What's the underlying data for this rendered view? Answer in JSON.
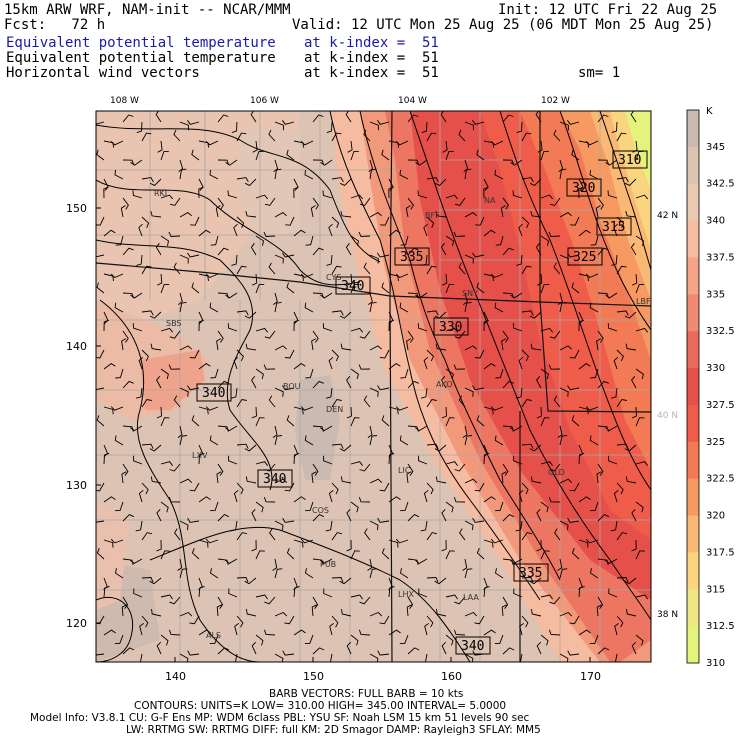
{
  "header": {
    "model_line": "15km ARW WRF, NAM-init -- NCAR/MMM",
    "init_line": "Init: 12 UTC Fri 22 Aug 25",
    "fcst_line": "Fcst:   72 h",
    "valid_line": "Valid: 12 UTC Mon 25 Aug 25 (06 MDT Mon 25 Aug 25)",
    "field1_name": "Equivalent potential temperature",
    "field1_level": "at k-index =  51",
    "field2_name": "Equivalent potential temperature",
    "field2_level": "at k-index =  51",
    "field3_name": "Horizontal wind vectors",
    "field3_level": "at k-index =  51",
    "smoothing": "sm= 1"
  },
  "map": {
    "top_lon_labels": [
      "108 W",
      "106 W",
      "104 W",
      "102 W"
    ],
    "right_lat_labels": [
      "42 N",
      "40 N",
      "38 N"
    ],
    "left_y_ticks": [
      "150",
      "140",
      "130",
      "120"
    ],
    "bottom_x_ticks": [
      "140",
      "150",
      "160",
      "170"
    ],
    "stations": [
      "RKL",
      "BFF",
      "NA",
      "CYS",
      "SNY",
      "LBF",
      "SBS",
      "BOU",
      "DEN",
      "AKO",
      "LIC",
      "GLD",
      "LXV",
      "COS",
      "PUB",
      "LHX",
      "LAA",
      "ALS"
    ],
    "contour_labels": [
      "310",
      "320",
      "315",
      "335",
      "325",
      "340",
      "330",
      "340",
      "340",
      "335",
      "340"
    ],
    "contour_line_color": "#000000",
    "border_color": "#111111",
    "county_color": "#a8a8a8"
  },
  "colorbar": {
    "unit": "K",
    "levels": [
      "345",
      "342.5",
      "340",
      "337.5",
      "335",
      "332.5",
      "330",
      "327.5",
      "325",
      "322.5",
      "320",
      "317.5",
      "315",
      "312.5",
      "310"
    ],
    "colors": [
      "#c9b9b0",
      "#dcc3b2",
      "#ecc9b1",
      "#f6bca2",
      "#f5a488",
      "#f08a73",
      "#ea6a5c",
      "#e6504a",
      "#ef5d4a",
      "#f27a55",
      "#f69a62",
      "#f9b974",
      "#f8d57e",
      "#eee783",
      "#e4f37c"
    ]
  },
  "footer": {
    "barb_line": "BARB VECTORS:  FULL BARB = 10 kts",
    "contours_line": "CONTOURS:  UNITS=K   LOW=  310.00       HIGH=  345.00       INTERVAL=   5.0000",
    "model_info_line": "Model Info: V3.8.1      CU: G-F Ens  MP: WDM 6class   PBL: YSU        SF: Noah LSM      15 km    51 levels    90 sec",
    "physics_line": "LW: RRTMG    SW: RRTMG   DIFF: full    KM: 2D Smagor DAMP: Rayleigh3   SFLAY: MM5"
  }
}
